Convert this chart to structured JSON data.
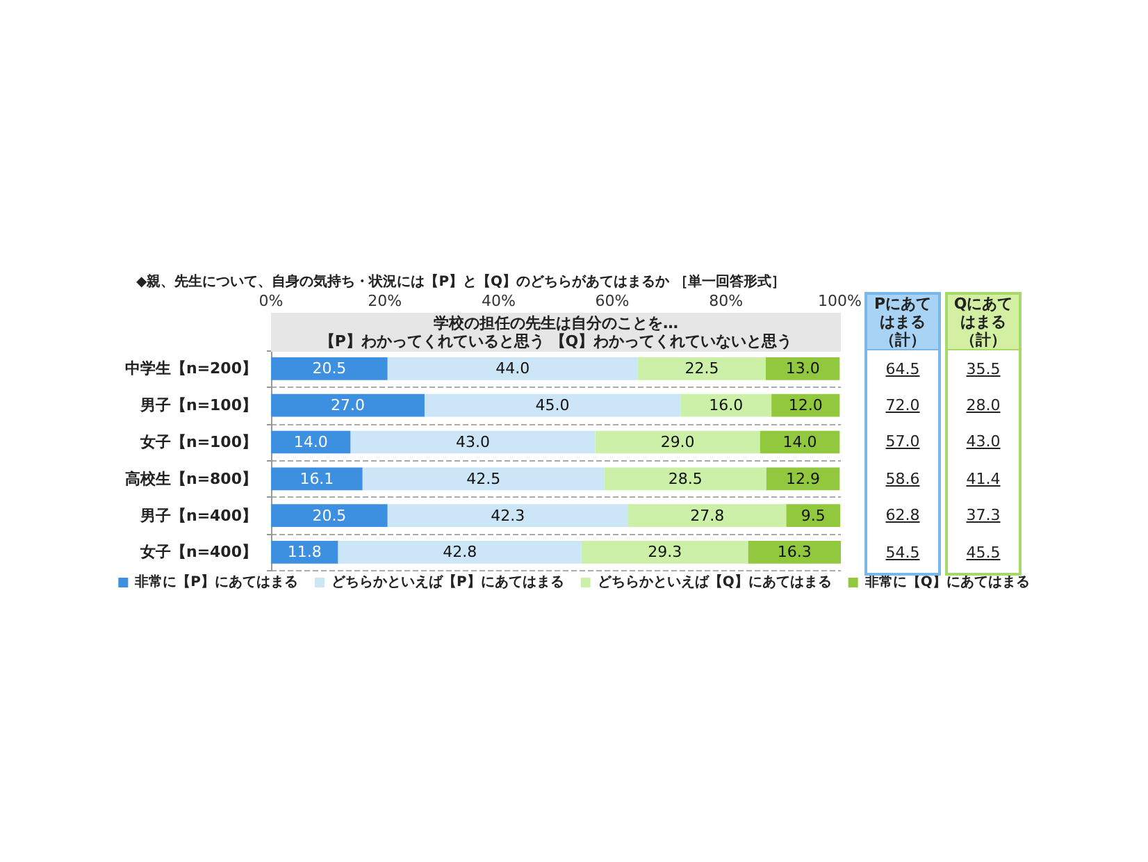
{
  "chart_data": [
    {
      "type": "bar",
      "orientation": "horizontal",
      "stacked": true,
      "title": "◆親、先生について、自身の気持ち・状況には【P】と【Q】のどちらがあてはまるか ［単一回答形式］",
      "subtitle": "学校の担任の先生は自分のことを…\n【P】わかってくれていると思う 【Q】わかってくれていないと思う",
      "categories": [
        "中学生【n=200】",
        "男子【n=100】",
        "女子【n=100】",
        "高校生【n=800】",
        "男子【n=400】",
        "女子【n=400】"
      ],
      "series": [
        {
          "name": "非常に【P】にあてはまる",
          "color": "#3d8fe0",
          "values": [
            20.5,
            27.0,
            14.0,
            16.1,
            20.5,
            11.8
          ],
          "value_labels": [
            "20.5",
            "27.0",
            "14.0",
            "16.1",
            "20.5",
            "11.8"
          ]
        },
        {
          "name": "どちらかといえば【P】にあてはまる",
          "color": "#cde6f7",
          "values": [
            44.0,
            45.0,
            43.0,
            42.5,
            42.3,
            42.8
          ],
          "value_labels": [
            "44.0",
            "45.0",
            "43.0",
            "42.5",
            "42.3",
            "42.8"
          ]
        },
        {
          "name": "どちらかといえば【Q】にあてはまる",
          "color": "#ccf0a8",
          "values": [
            22.5,
            16.0,
            29.0,
            28.5,
            27.8,
            29.3
          ],
          "value_labels": [
            "22.5",
            "16.0",
            "29.0",
            "28.5",
            "27.8",
            "29.3"
          ]
        },
        {
          "name": "非常に【Q】にあてはまる",
          "color": "#92c83e",
          "values": [
            13.0,
            12.0,
            14.0,
            12.9,
            9.5,
            16.3
          ],
          "value_labels": [
            "13.0",
            "12.0",
            "14.0",
            "12.9",
            "9.5",
            "16.3"
          ]
        }
      ],
      "xlim": [
        0,
        100.2
      ],
      "xticks": [
        {
          "value": 0,
          "label": "0%"
        },
        {
          "value": 20,
          "label": "20%"
        },
        {
          "value": 40,
          "label": "40%"
        },
        {
          "value": 60,
          "label": "60%"
        },
        {
          "value": 80,
          "label": "80%"
        },
        {
          "value": 100,
          "label": "100%"
        }
      ],
      "grid": "y",
      "legend": "bottom"
    },
    {
      "type": "other",
      "title": "Pにあてはまる（計）",
      "annotations": [
        "64.5",
        "72.0",
        "57.0",
        "58.6",
        "62.8",
        "54.5"
      ]
    },
    {
      "type": "other",
      "title": "Qにあてはまる（計）",
      "annotations": [
        "35.5",
        "28.0",
        "43.0",
        "41.4",
        "37.3",
        "45.5"
      ]
    }
  ]
}
